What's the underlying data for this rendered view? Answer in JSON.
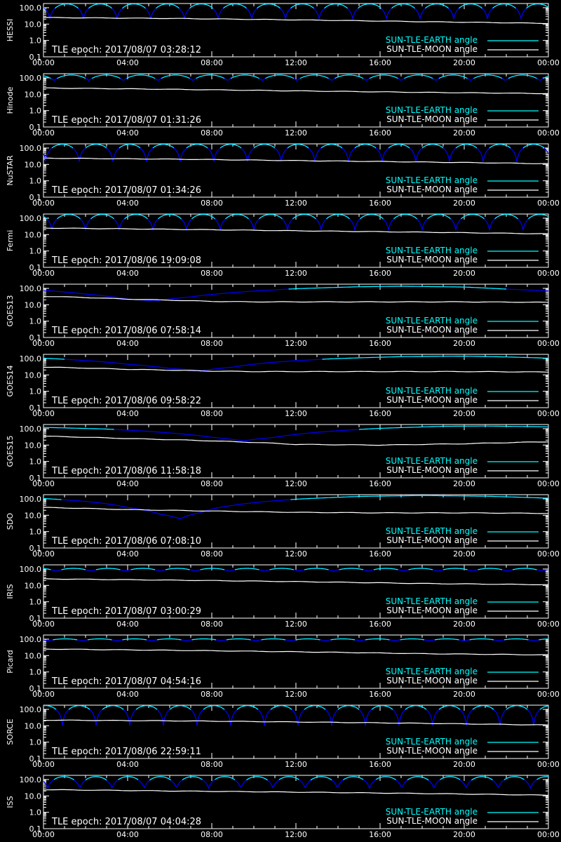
{
  "colors": {
    "background": "#000000",
    "axes": "#ffffff",
    "earth_angle": "#00ffff",
    "earth_angle_below": "#0000ff",
    "moon_angle": "#ffffff"
  },
  "x_ticks": [
    "00:00",
    "04:00",
    "08:00",
    "12:00",
    "16:00",
    "20:00",
    "00:00"
  ],
  "y_ticks": [
    "100.0",
    "10.0",
    "1.0",
    "0.1"
  ],
  "legend": {
    "earth": "SUN-TLE-EARTH angle",
    "moon": "SUN-TLE-MOON angle"
  },
  "epoch_prefix": "TLE epoch: ",
  "chart_data": [
    {
      "type": "line",
      "satellite": "HESSI",
      "epoch": "2017/08/07 03:28:12",
      "xlim": [
        0,
        24
      ],
      "ylim": [
        0.1,
        180
      ],
      "yscale": "log",
      "earth_angle": {
        "shape": "arches",
        "period_h": 1.6,
        "phase_h": 0.3,
        "min": 22,
        "max": 170
      },
      "moon_angle": {
        "x": [
          0,
          6,
          12,
          18,
          24
        ],
        "y": [
          25,
          22,
          18,
          14,
          11
        ]
      }
    },
    {
      "type": "line",
      "satellite": "Hinode",
      "epoch": "2017/08/07 01:31:26",
      "xlim": [
        0,
        24
      ],
      "ylim": [
        0.1,
        180
      ],
      "yscale": "log",
      "earth_angle": {
        "shape": "arches",
        "period_h": 1.65,
        "phase_h": 0.5,
        "min": 70,
        "max": 150
      },
      "moon_angle": {
        "x": [
          0,
          6,
          12,
          18,
          24
        ],
        "y": [
          24,
          20,
          16,
          13,
          11
        ]
      }
    },
    {
      "type": "line",
      "satellite": "NuSTAR",
      "epoch": "2017/08/07 01:34:26",
      "xlim": [
        0,
        24
      ],
      "ylim": [
        0.1,
        180
      ],
      "yscale": "log",
      "earth_angle": {
        "shape": "arches",
        "period_h": 1.6,
        "phase_h": 0.1,
        "min": 15,
        "max": 168
      },
      "moon_angle": {
        "x": [
          0,
          6,
          12,
          18,
          24
        ],
        "y": [
          24,
          21,
          17,
          14,
          11
        ]
      }
    },
    {
      "type": "line",
      "satellite": "Fermi",
      "epoch": "2017/08/06 19:09:08",
      "xlim": [
        0,
        24
      ],
      "ylim": [
        0.1,
        180
      ],
      "yscale": "log",
      "earth_angle": {
        "shape": "arches",
        "period_h": 1.6,
        "phase_h": 0.4,
        "min": 20,
        "max": 170
      },
      "moon_angle": {
        "x": [
          0,
          6,
          12,
          18,
          24
        ],
        "y": [
          25,
          21,
          17,
          14,
          11
        ]
      }
    },
    {
      "type": "line",
      "satellite": "GOES13",
      "epoch": "2017/08/06 07:58:14",
      "xlim": [
        0,
        24
      ],
      "ylim": [
        0.1,
        180
      ],
      "yscale": "log",
      "earth_angle": {
        "shape": "geo",
        "x": [
          0,
          2,
          4,
          5.3,
          7,
          9,
          12,
          15,
          17,
          20,
          22,
          24
        ],
        "y": [
          75,
          45,
          22,
          17,
          30,
          55,
          95,
          125,
          135,
          120,
          90,
          70
        ]
      },
      "moon_angle": {
        "x": [
          0,
          4,
          8,
          10,
          12,
          16,
          20,
          24
        ],
        "y": [
          33,
          22,
          16,
          15,
          15,
          15,
          15,
          14
        ]
      }
    },
    {
      "type": "line",
      "satellite": "GOES14",
      "epoch": "2017/08/06 09:58:22",
      "xlim": [
        0,
        24
      ],
      "ylim": [
        0.1,
        180
      ],
      "yscale": "log",
      "earth_angle": {
        "shape": "geo",
        "x": [
          0,
          2,
          4,
          6,
          7.5,
          9,
          11,
          14,
          17,
          20,
          22,
          24
        ],
        "y": [
          105,
          75,
          45,
          25,
          18,
          30,
          60,
          100,
          130,
          140,
          125,
          105
        ]
      },
      "moon_angle": {
        "x": [
          0,
          4,
          8,
          10,
          12,
          16,
          20,
          24
        ],
        "y": [
          30,
          22,
          17,
          16,
          16,
          16,
          16,
          15
        ]
      }
    },
    {
      "type": "line",
      "satellite": "GOES15",
      "epoch": "2017/08/06 11:58:18",
      "xlim": [
        0,
        24
      ],
      "ylim": [
        0.1,
        180
      ],
      "yscale": "log",
      "earth_angle": {
        "shape": "geo",
        "x": [
          0,
          3,
          6,
          8,
          9.5,
          11,
          13,
          16,
          19,
          21,
          24
        ],
        "y": [
          120,
          95,
          55,
          30,
          18,
          30,
          60,
          105,
          140,
          145,
          130
        ]
      },
      "moon_angle": {
        "x": [
          0,
          4,
          8,
          12,
          16,
          20,
          24
        ],
        "y": [
          35,
          25,
          18,
          11,
          10,
          12,
          16
        ]
      }
    },
    {
      "type": "line",
      "satellite": "SDO",
      "epoch": "2017/08/06 07:08:10",
      "xlim": [
        0,
        24
      ],
      "ylim": [
        0.1,
        180
      ],
      "yscale": "log",
      "earth_angle": {
        "shape": "geo",
        "x": [
          0,
          2,
          4,
          5.5,
          6.5,
          7.5,
          9,
          12,
          15,
          18,
          21,
          24
        ],
        "y": [
          105,
          70,
          30,
          12,
          6,
          15,
          40,
          95,
          140,
          160,
          145,
          110
        ]
      },
      "moon_angle": {
        "x": [
          0,
          4,
          8,
          12,
          16,
          20,
          24
        ],
        "y": [
          30,
          22,
          18,
          15,
          14,
          14,
          13
        ]
      }
    },
    {
      "type": "line",
      "satellite": "IRIS",
      "epoch": "2017/08/07 03:00:29",
      "xlim": [
        0,
        24
      ],
      "ylim": [
        0.1,
        180
      ],
      "yscale": "log",
      "earth_angle": {
        "shape": "arches",
        "period_h": 1.65,
        "phase_h": 0.6,
        "min": 75,
        "max": 110
      },
      "moon_angle": {
        "x": [
          0,
          6,
          12,
          18,
          24
        ],
        "y": [
          25,
          21,
          17,
          13,
          11
        ]
      }
    },
    {
      "type": "line",
      "satellite": "Picard",
      "epoch": "2017/08/07 04:54:16",
      "xlim": [
        0,
        24
      ],
      "ylim": [
        0.1,
        180
      ],
      "yscale": "log",
      "earth_angle": {
        "shape": "arches",
        "period_h": 1.65,
        "phase_h": 0.2,
        "min": 80,
        "max": 105
      },
      "moon_angle": {
        "x": [
          0,
          6,
          12,
          18,
          24
        ],
        "y": [
          25,
          21,
          17,
          13,
          11
        ]
      }
    },
    {
      "type": "line",
      "satellite": "SORCE",
      "epoch": "2017/08/06 22:59:11",
      "xlim": [
        0,
        24
      ],
      "ylim": [
        0.1,
        180
      ],
      "yscale": "log",
      "earth_angle": {
        "shape": "arches",
        "period_h": 1.6,
        "phase_h": 0.9,
        "min": 10,
        "max": 168
      },
      "moon_angle": {
        "x": [
          0,
          6,
          12,
          18,
          24
        ],
        "y": [
          22,
          20,
          17,
          14,
          11
        ]
      }
    },
    {
      "type": "line",
      "satellite": "ISS",
      "epoch": "2017/08/07 04:04:28",
      "xlim": [
        0,
        24
      ],
      "ylim": [
        0.1,
        180
      ],
      "yscale": "log",
      "earth_angle": {
        "shape": "arches",
        "period_h": 1.53,
        "phase_h": 0.2,
        "min": 30,
        "max": 150
      },
      "moon_angle": {
        "x": [
          0,
          6,
          12,
          18,
          24
        ],
        "y": [
          24,
          20,
          17,
          14,
          11
        ]
      }
    }
  ]
}
